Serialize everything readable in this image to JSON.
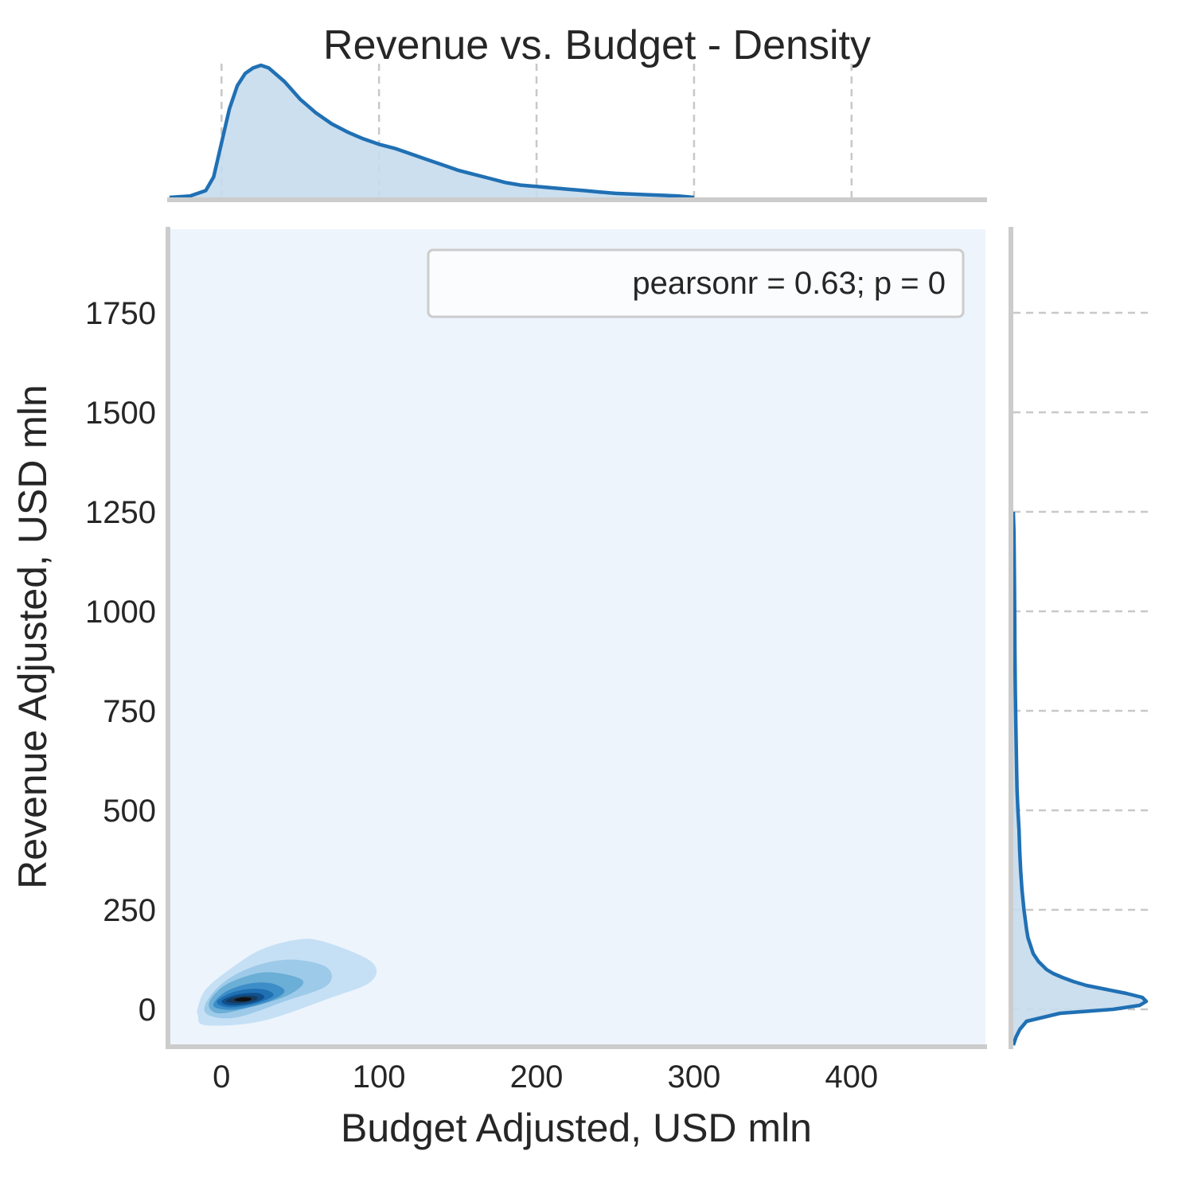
{
  "chart_data": {
    "type": "kde-joint",
    "title": "Revenue vs. Budget - Density",
    "xlabel": "Budget Adjusted, USD mln",
    "ylabel": "Revenue Adjusted, USD mln",
    "xlim": [
      -33,
      485
    ],
    "ylim": [
      -90,
      1960
    ],
    "xticks": [
      0,
      100,
      200,
      300,
      400
    ],
    "yticks": [
      0,
      250,
      500,
      750,
      1000,
      1250,
      1500,
      1750
    ],
    "annotation": "pearsonr = 0.63; p = 0",
    "legend_position": "top-right",
    "grid": "dashed, marginal axes only",
    "colors": {
      "line": "#2070b4",
      "fill": "#c6dbec",
      "background": "#edf4fc",
      "spine": "#cccccc",
      "grid": "#c8c8c8",
      "contours": [
        "#c5e0f5",
        "#9ecae9",
        "#6baed6",
        "#3d8ec8",
        "#2070b4",
        "#10508c",
        "#173a5e",
        "#111111"
      ]
    },
    "contours": [
      {
        "level": 1,
        "points": [
          [
            -15,
            5
          ],
          [
            -10,
            50
          ],
          [
            5,
            100
          ],
          [
            25,
            150
          ],
          [
            48,
            175
          ],
          [
            65,
            170
          ],
          [
            95,
            120
          ],
          [
            95,
            70
          ],
          [
            70,
            30
          ],
          [
            25,
            -30
          ],
          [
            -10,
            -40
          ],
          [
            -15,
            -15
          ]
        ]
      },
      {
        "level": 2,
        "points": [
          [
            -10,
            15
          ],
          [
            2,
            70
          ],
          [
            22,
            110
          ],
          [
            45,
            125
          ],
          [
            67,
            105
          ],
          [
            67,
            60
          ],
          [
            40,
            20
          ],
          [
            10,
            -20
          ],
          [
            -8,
            -15
          ]
        ]
      },
      {
        "level": 3,
        "points": [
          [
            -8,
            15
          ],
          [
            2,
            60
          ],
          [
            22,
            90
          ],
          [
            38,
            90
          ],
          [
            52,
            70
          ],
          [
            42,
            35
          ],
          [
            18,
            5
          ],
          [
            -2,
            -10
          ]
        ]
      },
      {
        "level": 4,
        "points": [
          [
            -5,
            15
          ],
          [
            3,
            45
          ],
          [
            18,
            65
          ],
          [
            32,
            65
          ],
          [
            40,
            45
          ],
          [
            30,
            20
          ],
          [
            10,
            0
          ],
          [
            -2,
            2
          ]
        ]
      },
      {
        "level": 5,
        "points": [
          [
            -3,
            18
          ],
          [
            4,
            38
          ],
          [
            15,
            50
          ],
          [
            27,
            50
          ],
          [
            33,
            35
          ],
          [
            22,
            15
          ],
          [
            5,
            5
          ]
        ]
      },
      {
        "level": 6,
        "points": [
          [
            0,
            20
          ],
          [
            6,
            33
          ],
          [
            15,
            40
          ],
          [
            24,
            40
          ],
          [
            27,
            28
          ],
          [
            18,
            14
          ],
          [
            5,
            10
          ]
        ]
      },
      {
        "level": 7,
        "points": [
          [
            3,
            22
          ],
          [
            8,
            30
          ],
          [
            16,
            34
          ],
          [
            22,
            32
          ],
          [
            22,
            24
          ],
          [
            14,
            16
          ],
          [
            6,
            16
          ]
        ]
      },
      {
        "level": 8,
        "points": [
          [
            8,
            24
          ],
          [
            13,
            30
          ],
          [
            19,
            28
          ],
          [
            17,
            21
          ],
          [
            11,
            20
          ]
        ]
      }
    ],
    "marginal_x": {
      "x": [
        -33,
        -20,
        -10,
        -5,
        0,
        5,
        10,
        15,
        20,
        25,
        30,
        40,
        50,
        60,
        70,
        80,
        90,
        100,
        110,
        120,
        130,
        140,
        150,
        160,
        170,
        180,
        190,
        200,
        210,
        220,
        230,
        240,
        250,
        260,
        270,
        280,
        290,
        300
      ],
      "density": [
        0.0,
        0.01,
        0.05,
        0.15,
        0.4,
        0.65,
        0.82,
        0.91,
        0.95,
        0.97,
        0.95,
        0.85,
        0.72,
        0.62,
        0.54,
        0.48,
        0.43,
        0.39,
        0.36,
        0.32,
        0.28,
        0.24,
        0.2,
        0.17,
        0.14,
        0.11,
        0.09,
        0.08,
        0.07,
        0.06,
        0.05,
        0.04,
        0.03,
        0.025,
        0.02,
        0.015,
        0.01,
        0.0
      ]
    },
    "marginal_y": {
      "y": [
        -90,
        -70,
        -50,
        -30,
        -10,
        0,
        10,
        20,
        30,
        40,
        50,
        60,
        70,
        80,
        90,
        100,
        120,
        140,
        160,
        180,
        200,
        250,
        300,
        350,
        400,
        450,
        500,
        550,
        600,
        700,
        800,
        900,
        1000,
        1100,
        1200,
        1250
      ],
      "density": [
        0.0,
        0.02,
        0.05,
        0.1,
        0.35,
        0.75,
        0.95,
        1.0,
        0.97,
        0.85,
        0.7,
        0.55,
        0.45,
        0.37,
        0.3,
        0.25,
        0.19,
        0.15,
        0.13,
        0.11,
        0.1,
        0.08,
        0.065,
        0.055,
        0.048,
        0.043,
        0.035,
        0.028,
        0.025,
        0.02,
        0.015,
        0.012,
        0.01,
        0.008,
        0.005,
        0.0
      ]
    }
  }
}
